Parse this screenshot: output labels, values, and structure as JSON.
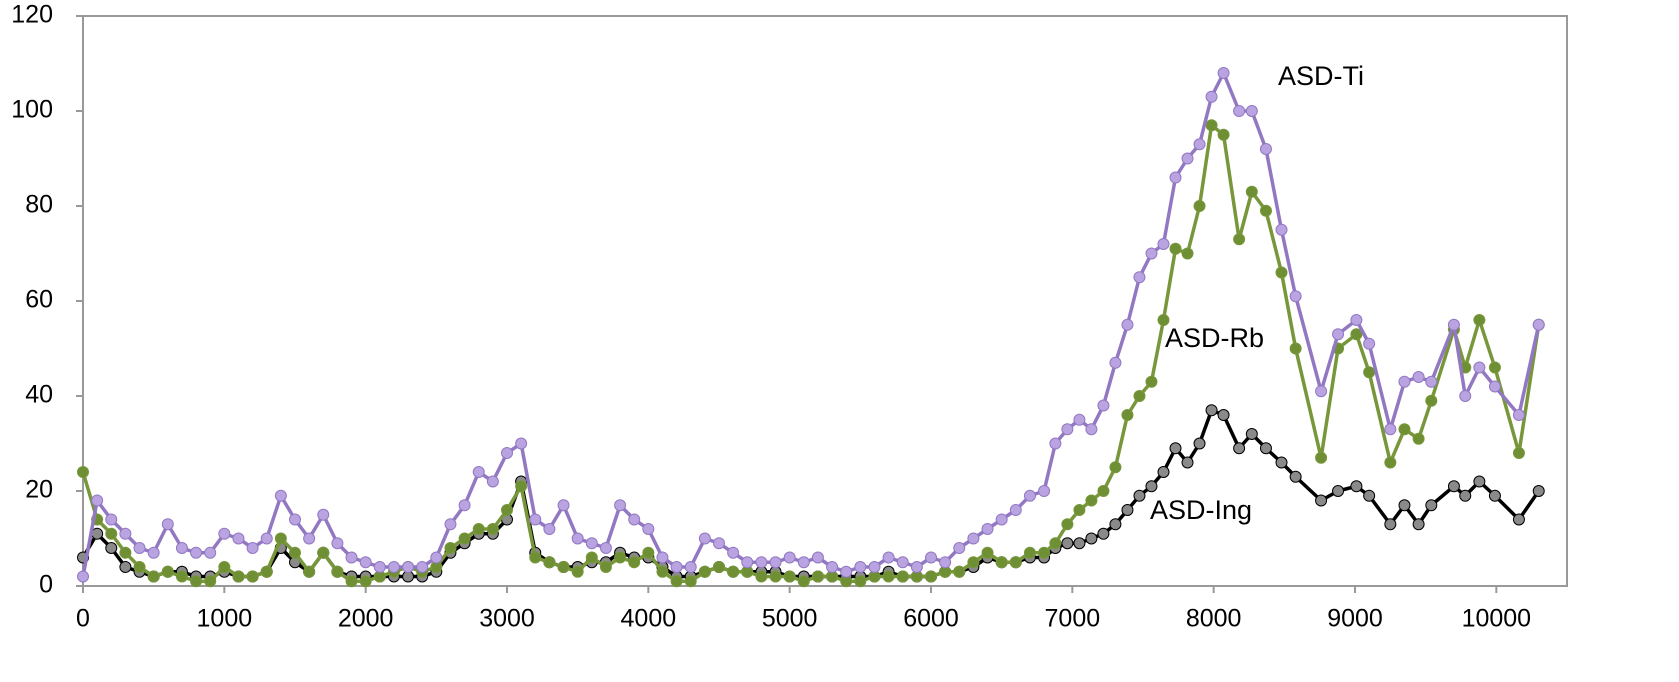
{
  "chart_data": {
    "type": "line",
    "x": [
      0,
      100,
      200,
      300,
      400,
      500,
      600,
      700,
      800,
      900,
      1000,
      1100,
      1200,
      1300,
      1400,
      1500,
      1600,
      1700,
      1800,
      1900,
      2000,
      2100,
      2200,
      2300,
      2400,
      2500,
      2600,
      2700,
      2800,
      2900,
      3000,
      3100,
      3200,
      3300,
      3400,
      3500,
      3600,
      3700,
      3800,
      3900,
      4000,
      4100,
      4200,
      4300,
      4400,
      4500,
      4600,
      4700,
      4800,
      4900,
      5000,
      5100,
      5200,
      5300,
      5400,
      5500,
      5600,
      5700,
      5800,
      5900,
      6000,
      6100,
      6200,
      6300,
      6400,
      6500,
      6600,
      6700,
      6800,
      6880,
      6965,
      7050,
      7135,
      7220,
      7305,
      7390,
      7475,
      7560,
      7645,
      7730,
      7815,
      7900,
      7985,
      8070,
      8180,
      8270,
      8370,
      8480,
      8580,
      8760,
      8880,
      9010,
      9100,
      9250,
      9350,
      9450,
      9540,
      9700,
      9780,
      9880,
      9990,
      10160,
      10300
    ],
    "series": [
      {
        "name": "ASD-Ti",
        "color": "#9278c2",
        "values": [
          2,
          18,
          14,
          11,
          8,
          7,
          13,
          8,
          7,
          7,
          11,
          10,
          8,
          10,
          19,
          14,
          10,
          15,
          9,
          6,
          5,
          4,
          4,
          4,
          4,
          6,
          13,
          17,
          24,
          22,
          28,
          30,
          14,
          12,
          17,
          10,
          9,
          8,
          17,
          14,
          12,
          6,
          4,
          4,
          10,
          9,
          7,
          5,
          5,
          5,
          6,
          5,
          6,
          4,
          3,
          4,
          4,
          6,
          5,
          4,
          6,
          5,
          8,
          10,
          12,
          14,
          16,
          19,
          20,
          30,
          33,
          35,
          33,
          38,
          47,
          55,
          65,
          70,
          72,
          86,
          90,
          93,
          103,
          108,
          100,
          100,
          92,
          75,
          61,
          41,
          53,
          56,
          51,
          33,
          43,
          44,
          43,
          55,
          40,
          46,
          42,
          36,
          55
        ]
      },
      {
        "name": "ASD-Rb",
        "color": "#77973a",
        "values": [
          24,
          14,
          11,
          7,
          4,
          2,
          3,
          2,
          1,
          1,
          4,
          2,
          2,
          3,
          10,
          7,
          3,
          7,
          3,
          1,
          1,
          2,
          3,
          4,
          3,
          4,
          8,
          10,
          12,
          12,
          16,
          21,
          6,
          5,
          4,
          3,
          6,
          4,
          6,
          5,
          7,
          3,
          1,
          1,
          3,
          4,
          3,
          3,
          2,
          2,
          2,
          1,
          2,
          2,
          1,
          1,
          2,
          2,
          2,
          2,
          2,
          3,
          3,
          5,
          7,
          5,
          5,
          7,
          7,
          9,
          13,
          16,
          18,
          20,
          25,
          36,
          40,
          43,
          56,
          71,
          70,
          80,
          97,
          95,
          73,
          83,
          79,
          66,
          50,
          27,
          50,
          53,
          45,
          26,
          33,
          31,
          39,
          54,
          46,
          56,
          46,
          28,
          55
        ]
      },
      {
        "name": "ASD-Ing",
        "color": "#000000",
        "values": [
          6,
          11,
          8,
          4,
          3,
          2,
          3,
          3,
          2,
          2,
          3,
          2,
          2,
          3,
          8,
          5,
          3,
          7,
          3,
          2,
          2,
          2,
          2,
          2,
          2,
          3,
          7,
          9,
          11,
          11,
          14,
          22,
          7,
          5,
          4,
          4,
          5,
          5,
          7,
          6,
          6,
          4,
          2,
          2,
          3,
          4,
          3,
          3,
          3,
          3,
          2,
          2,
          2,
          2,
          2,
          2,
          2,
          3,
          2,
          2,
          2,
          3,
          3,
          4,
          6,
          5,
          5,
          6,
          6,
          8,
          9,
          9,
          10,
          11,
          13,
          16,
          19,
          21,
          24,
          29,
          26,
          30,
          37,
          36,
          29,
          32,
          29,
          26,
          23,
          18,
          20,
          21,
          19,
          13,
          17,
          13,
          17,
          21,
          19,
          22,
          19,
          14,
          20
        ]
      }
    ],
    "xlim": [
      0,
      10500
    ],
    "xticks": [
      0,
      1000,
      2000,
      3000,
      4000,
      5000,
      6000,
      7000,
      8000,
      9000,
      10000
    ],
    "ylim": [
      0,
      120
    ],
    "yticks": [
      0,
      20,
      40,
      60,
      80,
      100,
      120
    ],
    "grid": false
  }
}
